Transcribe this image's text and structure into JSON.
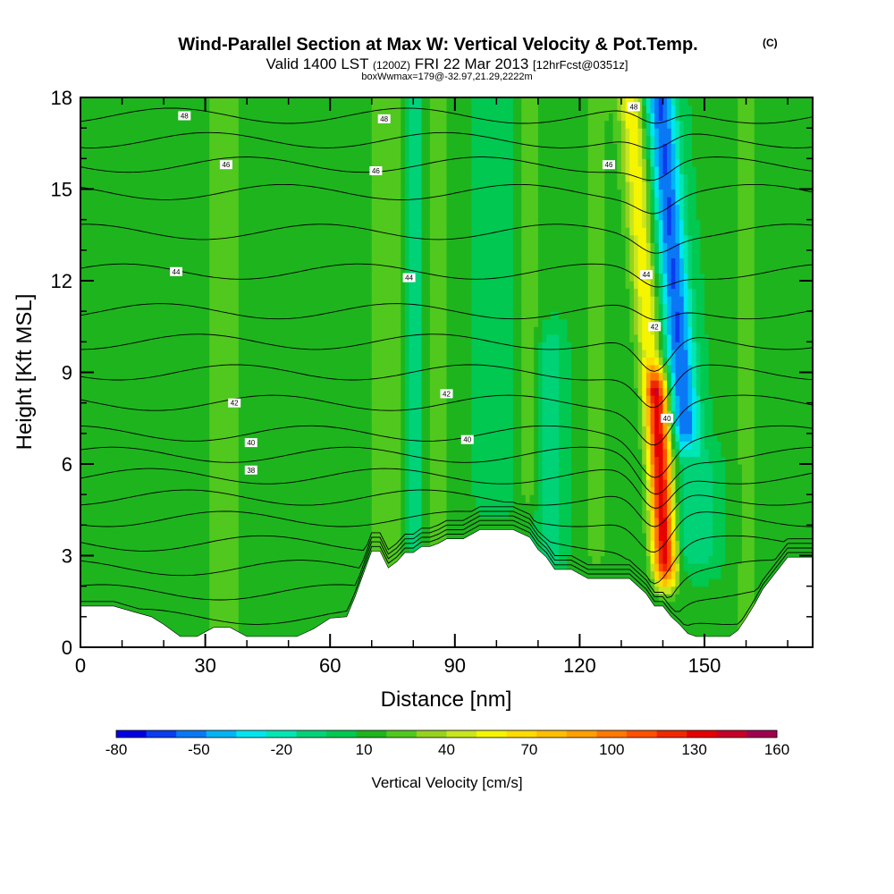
{
  "chart_data": {
    "type": "heatmap",
    "title": {
      "main": "Wind-Parallel Section at Max W: Vertical Velocity & Pot.Temp.",
      "copyright": "(C)",
      "valid_prefix": "Valid 1400 LST",
      "valid_utc": "(1200Z)",
      "valid_date": "FRI 22 Mar 2013",
      "forecast": "[12hrFcst@0351z]",
      "box_info": "boxWwmax=179@-32.97,21.29,2222m"
    },
    "xlabel": "Distance [nm]",
    "ylabel": "Height [Kft MSL]",
    "xlim": [
      0,
      176
    ],
    "ylim": [
      0,
      18
    ],
    "x_ticks": [
      0,
      30,
      60,
      90,
      120,
      150
    ],
    "y_ticks": [
      0,
      3,
      6,
      9,
      12,
      15,
      18
    ],
    "colorbar": {
      "label": "Vertical Velocity [cm/s]",
      "tick_labels": [
        "-80",
        "-50",
        "-20",
        "10",
        "40",
        "70",
        "100",
        "130",
        "160"
      ],
      "colors": [
        "#0000e0",
        "#0a3cf0",
        "#0a78f5",
        "#00b4f5",
        "#00e6f0",
        "#00e6b4",
        "#00d278",
        "#00c850",
        "#1eb41e",
        "#50c81e",
        "#96d21e",
        "#c8e61e",
        "#f5f500",
        "#ffdc00",
        "#ffbe00",
        "#ffa000",
        "#ff7800",
        "#ff5000",
        "#f02800",
        "#e60000",
        "#c80028",
        "#a00050"
      ]
    },
    "contour_labels": [
      {
        "x": 25,
        "y": 17.4,
        "text": "48"
      },
      {
        "x": 73,
        "y": 17.3,
        "text": "48"
      },
      {
        "x": 133,
        "y": 17.7,
        "text": "48"
      },
      {
        "x": 35,
        "y": 15.8,
        "text": "46"
      },
      {
        "x": 71,
        "y": 15.6,
        "text": "46"
      },
      {
        "x": 127,
        "y": 15.8,
        "text": "46"
      },
      {
        "x": 23,
        "y": 12.3,
        "text": "44"
      },
      {
        "x": 79,
        "y": 12.1,
        "text": "44"
      },
      {
        "x": 136,
        "y": 12.2,
        "text": "44"
      },
      {
        "x": 37,
        "y": 8.0,
        "text": "42"
      },
      {
        "x": 88,
        "y": 8.3,
        "text": "42"
      },
      {
        "x": 138,
        "y": 10.5,
        "text": "42"
      },
      {
        "x": 41,
        "y": 6.7,
        "text": "40"
      },
      {
        "x": 93,
        "y": 6.8,
        "text": "40"
      },
      {
        "x": 141,
        "y": 7.5,
        "text": "40"
      },
      {
        "x": 41,
        "y": 5.8,
        "text": "38"
      }
    ],
    "terrain": {
      "x": [
        0,
        4,
        8,
        13,
        17,
        20,
        24,
        28,
        32,
        36,
        40,
        44,
        48,
        52,
        56,
        60,
        64,
        66,
        68,
        70,
        72,
        74,
        76,
        78,
        80,
        82,
        84,
        86,
        88,
        92,
        96,
        100,
        104,
        108,
        110,
        112,
        114,
        116,
        118,
        120,
        122,
        124,
        126,
        128,
        130,
        132,
        134,
        136,
        138,
        140,
        142,
        144,
        146,
        148,
        150,
        152,
        154,
        156,
        158,
        160,
        162,
        164,
        166,
        168,
        170,
        172,
        176
      ],
      "height": [
        1.35,
        1.35,
        1.35,
        1.15,
        1.0,
        0.75,
        0.35,
        0.35,
        0.65,
        0.65,
        0.35,
        0.35,
        0.35,
        0.35,
        0.6,
        0.95,
        1.0,
        1.65,
        2.4,
        3.15,
        3.15,
        2.6,
        2.8,
        3.1,
        3.1,
        3.3,
        3.3,
        3.4,
        3.55,
        3.55,
        3.85,
        3.85,
        3.85,
        3.6,
        3.2,
        2.95,
        2.55,
        2.55,
        2.55,
        2.4,
        2.25,
        2.25,
        2.25,
        2.25,
        2.25,
        2.25,
        2.0,
        1.75,
        1.35,
        1.35,
        1.0,
        0.75,
        0.45,
        0.35,
        0.35,
        0.35,
        0.35,
        0.35,
        0.55,
        0.95,
        1.4,
        1.9,
        2.25,
        2.6,
        2.95,
        2.95,
        2.95
      ]
    },
    "w_field": {
      "base": 8,
      "features": [
        {
          "x0": 35,
          "slope": 0.0,
          "sigma": 3.5,
          "amp": 16,
          "ymin": 0,
          "ymax": 18
        },
        {
          "x0": 25,
          "slope": 0.0,
          "sigma": 3.0,
          "amp": 8,
          "ymin": 0,
          "ymax": 18
        },
        {
          "x0": 74,
          "slope": 0.0,
          "sigma": 3.0,
          "amp": 22,
          "ymin": 0,
          "ymax": 18
        },
        {
          "x0": 80,
          "slope": 0.0,
          "sigma": 1.4,
          "amp": -30,
          "ymin": 2.5,
          "ymax": 18
        },
        {
          "x0": 86,
          "slope": 0.0,
          "sigma": 2.0,
          "amp": 20,
          "ymin": 0,
          "ymax": 18
        },
        {
          "x0": 100,
          "slope": 0.0,
          "sigma": 3.0,
          "amp": -14,
          "ymin": 4,
          "ymax": 18
        },
        {
          "x0": 108,
          "slope": 0.0,
          "sigma": 2.0,
          "amp": 18,
          "ymin": 4,
          "ymax": 18
        },
        {
          "x0": 113,
          "slope": 0.0,
          "sigma": 2.2,
          "amp": -26,
          "ymin": 2,
          "ymax": 11
        },
        {
          "x0": 124,
          "slope": 0.0,
          "sigma": 2.5,
          "amp": 14,
          "ymin": 2,
          "ymax": 18
        },
        {
          "x0": 140,
          "slope": -0.55,
          "sigma": 2.3,
          "amp": 55,
          "ymin": 8,
          "ymax": 18
        },
        {
          "x0": 140,
          "slope": -0.35,
          "sigma": 2.0,
          "amp": 140,
          "ymin": 1.5,
          "ymax": 9.5
        },
        {
          "x0": 147,
          "slope": -0.55,
          "sigma": 2.6,
          "amp": -75,
          "ymin": 6,
          "ymax": 18
        },
        {
          "x0": 148,
          "slope": -0.1,
          "sigma": 4.0,
          "amp": -26,
          "ymin": 2,
          "ymax": 7
        },
        {
          "x0": 160,
          "slope": 0.0,
          "sigma": 3.0,
          "amp": 12,
          "ymin": 0,
          "ymax": 18
        }
      ]
    }
  }
}
